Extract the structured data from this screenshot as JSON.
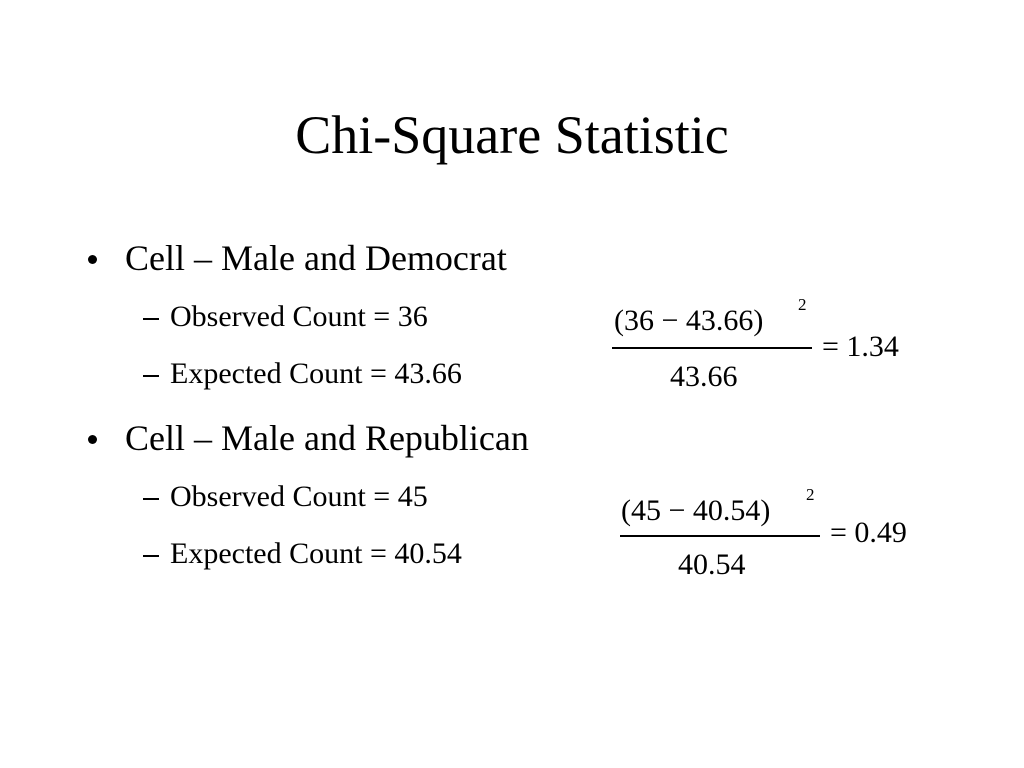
{
  "title": "Chi-Square Statistic",
  "bullets": [
    {
      "text": "Cell – Male and Democrat",
      "items": [
        "Observed Count = 36",
        "Expected Count = 43.66"
      ],
      "formula": {
        "numerator": "(36 − 43.66)",
        "exponent": "2",
        "denominator": "43.66",
        "result": "= 1.34"
      }
    },
    {
      "text": "Cell – Male and Republican",
      "items": [
        "Observed Count = 45",
        "Expected Count = 40.54"
      ],
      "formula": {
        "numerator": "(45 − 40.54)",
        "exponent": "2",
        "denominator": "40.54",
        "result": "= 0.49"
      }
    }
  ]
}
